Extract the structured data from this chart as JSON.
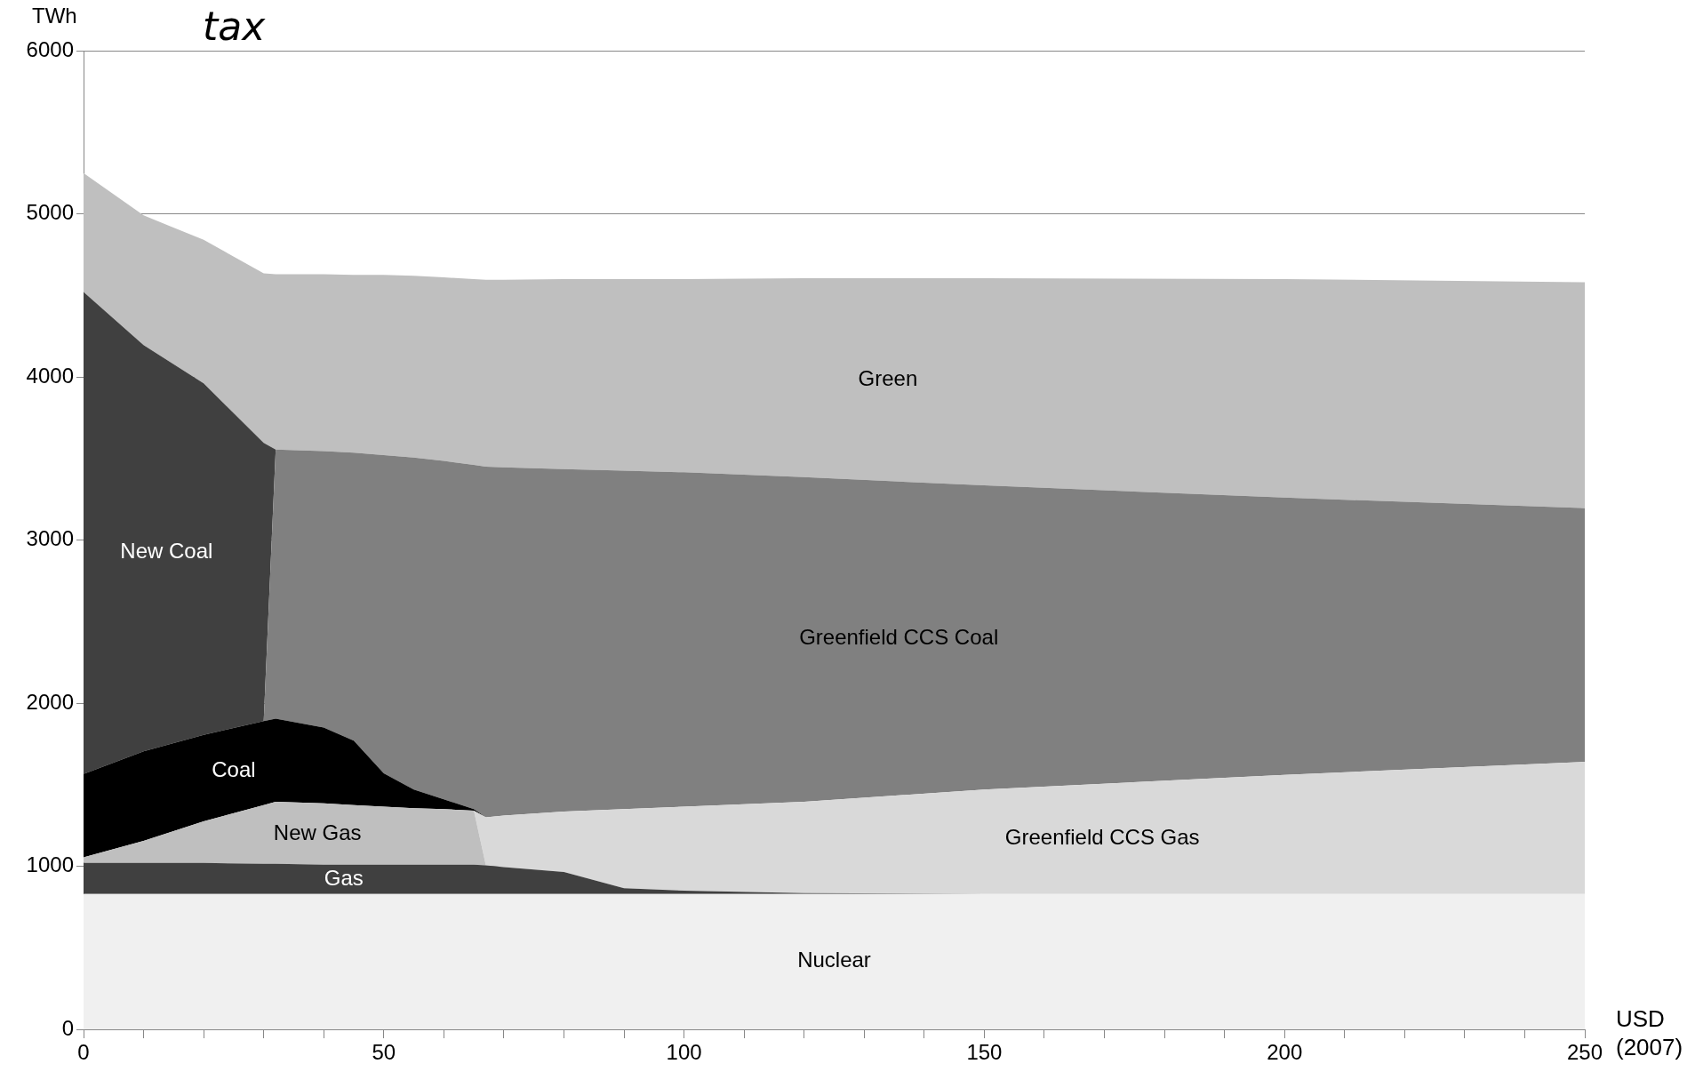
{
  "chart_data": {
    "type": "area",
    "title": "tax",
    "ylabel": "TWh",
    "xlabel": "USD (2007)",
    "stacked": true,
    "grid": "y",
    "x": [
      0,
      10,
      20,
      30,
      32,
      40,
      45,
      50,
      55,
      60,
      65,
      67,
      70,
      80,
      90,
      100,
      120,
      150,
      200,
      250
    ],
    "xlim": [
      0,
      250
    ],
    "ylim": [
      0,
      6000
    ],
    "xticks": [
      0,
      {
        "value": 10,
        "label": null
      },
      {
        "value": 20,
        "label": null
      },
      {
        "value": 30,
        "label": null
      },
      {
        "value": 40,
        "label": null
      },
      50,
      {
        "value": 60,
        "label": null
      },
      {
        "value": 70,
        "label": null
      },
      {
        "value": 80,
        "label": null
      },
      {
        "value": 90,
        "label": null
      },
      100,
      {
        "value": 110,
        "label": null
      },
      {
        "value": 120,
        "label": null
      },
      {
        "value": 130,
        "label": null
      },
      {
        "value": 140,
        "label": null
      },
      150,
      {
        "value": 160,
        "label": null
      },
      {
        "value": 170,
        "label": null
      },
      {
        "value": 180,
        "label": null
      },
      {
        "value": 190,
        "label": null
      },
      200,
      {
        "value": 210,
        "label": null
      },
      {
        "value": 220,
        "label": null
      },
      {
        "value": 230,
        "label": null
      },
      {
        "value": 240,
        "label": null
      },
      250
    ],
    "yticks": [
      0,
      1000,
      2000,
      3000,
      4000,
      5000,
      6000
    ],
    "series": [
      {
        "name": "Nuclear",
        "color": "#f0f0f0",
        "values": [
          830,
          830,
          830,
          830,
          830,
          830,
          830,
          830,
          830,
          830,
          830,
          830,
          830,
          830,
          830,
          830,
          830,
          830,
          830,
          830
        ]
      },
      {
        "name": "Gas",
        "color": "#404040",
        "values": [
          190,
          190,
          190,
          185,
          185,
          180,
          180,
          180,
          180,
          180,
          180,
          175,
          165,
          135,
          35,
          20,
          5,
          0,
          0,
          0
        ]
      },
      {
        "name": "New Gas",
        "color": "#bfbfbf",
        "values": [
          35,
          135,
          255,
          360,
          380,
          375,
          365,
          355,
          345,
          340,
          330,
          0,
          0,
          0,
          0,
          0,
          0,
          0,
          0,
          0
        ]
      },
      {
        "name": "Greenfield CCS Gas",
        "color": "#d9d9d9",
        "values": [
          0,
          0,
          0,
          0,
          0,
          0,
          0,
          0,
          0,
          0,
          0,
          295,
          315,
          370,
          485,
          515,
          560,
          640,
          730,
          810
        ]
      },
      {
        "name": "Coal",
        "color": "#000000",
        "values": [
          510,
          550,
          530,
          515,
          510,
          465,
          395,
          205,
          115,
          60,
          10,
          0,
          0,
          0,
          0,
          0,
          0,
          0,
          0,
          0
        ]
      },
      {
        "name": "Greenfield CCS Coal",
        "color": "#808080",
        "values": [
          0,
          0,
          0,
          0,
          1650,
          1695,
          1765,
          1950,
          2035,
          2075,
          2110,
          2150,
          2135,
          2100,
          2075,
          2050,
          1990,
          1865,
          1700,
          1555
        ]
      },
      {
        "name": "New Coal",
        "color": "#404040",
        "values": [
          2955,
          2490,
          2155,
          1705,
          0,
          0,
          0,
          0,
          0,
          0,
          0,
          0,
          0,
          0,
          0,
          0,
          0,
          0,
          0,
          0
        ]
      },
      {
        "name": "Green",
        "color": "#bfbfbf",
        "values": [
          730,
          795,
          880,
          1040,
          1075,
          1085,
          1090,
          1105,
          1115,
          1125,
          1140,
          1145,
          1150,
          1165,
          1175,
          1185,
          1220,
          1270,
          1340,
          1385
        ]
      }
    ]
  }
}
